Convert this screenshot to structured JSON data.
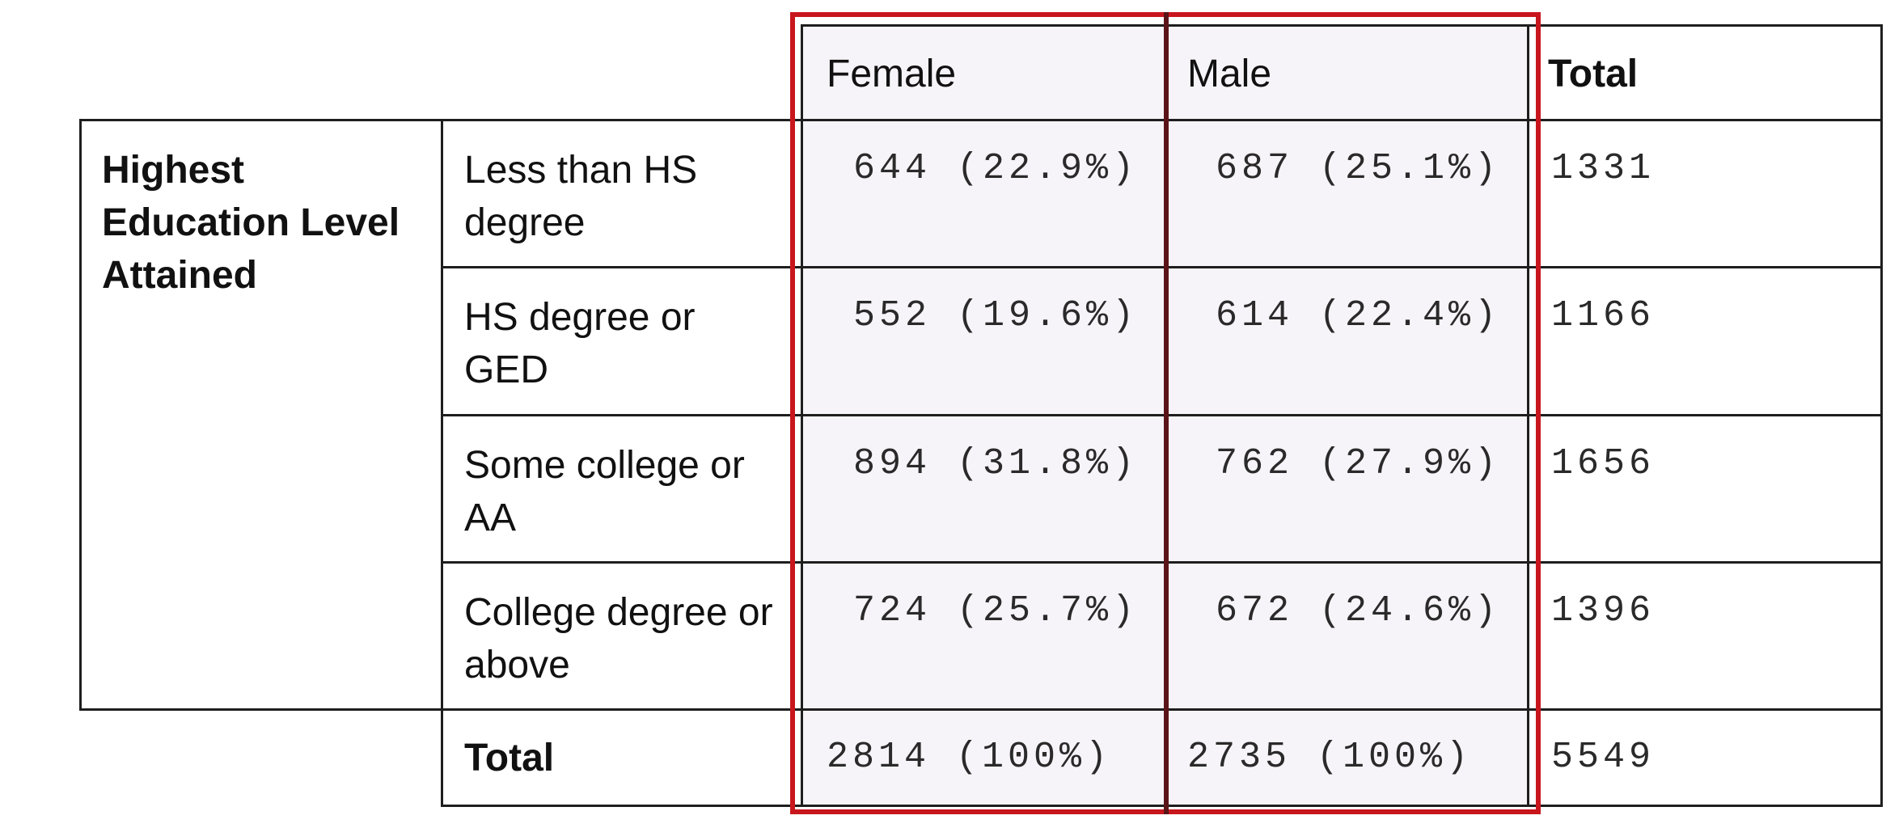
{
  "header": {
    "female": "Female",
    "male": "Male",
    "total": "Total"
  },
  "row_group_label": "Highest Education Level Attained",
  "rows": [
    {
      "label": "Less than HS degree",
      "female": "644 (22.9%)",
      "male": "687 (25.1%)",
      "total": "1331"
    },
    {
      "label": "HS degree or GED",
      "female": "552 (19.6%)",
      "male": "614 (22.4%)",
      "total": "1166"
    },
    {
      "label": "Some college or AA",
      "female": "894 (31.8%)",
      "male": "762 (27.9%)",
      "total": "1656"
    },
    {
      "label": "College degree or above",
      "female": "724 (25.7%)",
      "male": "672 (24.6%)",
      "total": "1396"
    }
  ],
  "totals": {
    "label": "Total",
    "female": "2814 (100%)",
    "male": "2735 (100%)",
    "total": "5549"
  },
  "colors": {
    "highlight": "#c8161d",
    "highlight_shade": "#f6f4f9",
    "grid": "#1e1e1e"
  }
}
